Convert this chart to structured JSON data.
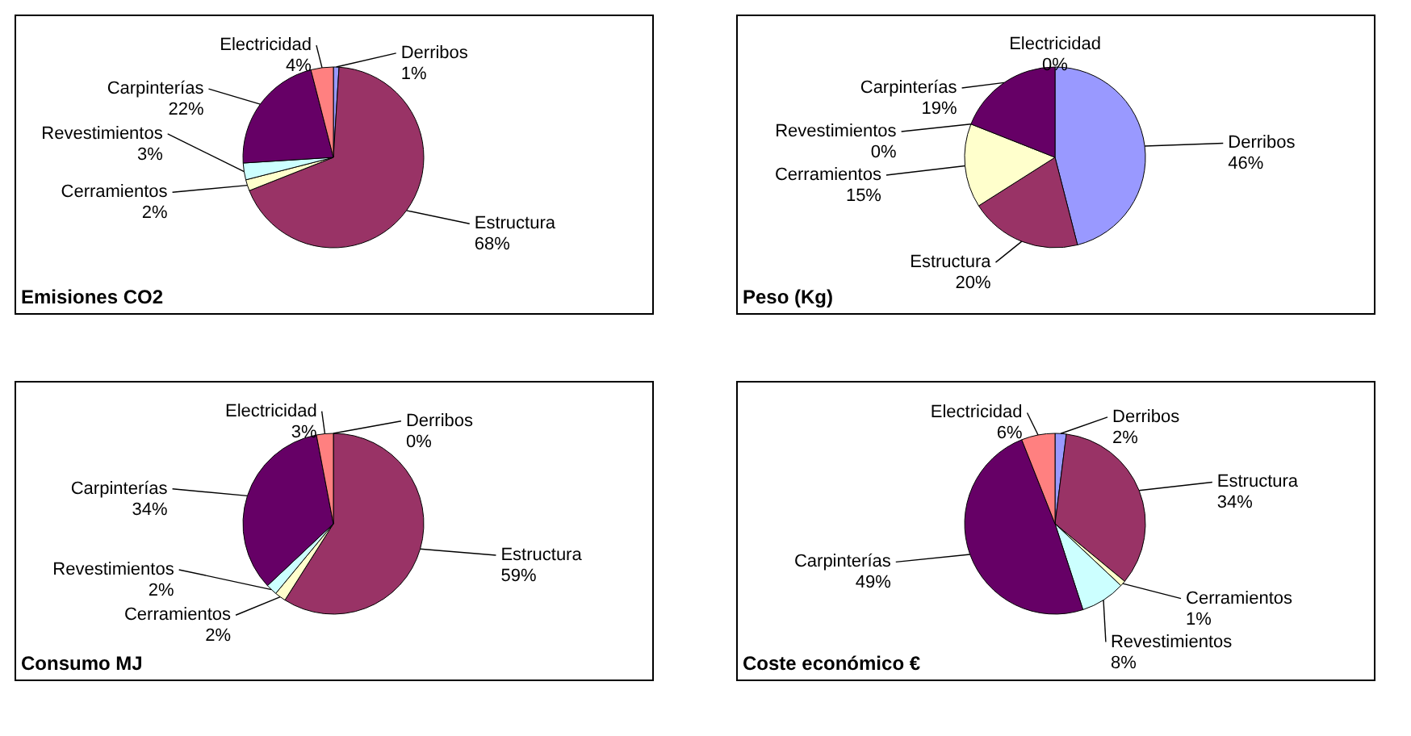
{
  "chart_data": [
    {
      "type": "pie",
      "title": "Emisiones CO2",
      "categories": [
        "Derribos",
        "Estructura",
        "Cerramientos",
        "Revestimientos",
        "Carpinterías",
        "Electricidad"
      ],
      "values": [
        1,
        68,
        2,
        3,
        22,
        4
      ],
      "value_labels": [
        "1%",
        "68%",
        "2%",
        "3%",
        "22%",
        "4%"
      ],
      "colors": [
        "#9999ff",
        "#993366",
        "#ffffcc",
        "#ccffff",
        "#660066",
        "#ff8080"
      ]
    },
    {
      "type": "pie",
      "title": "Peso (Kg)",
      "categories": [
        "Derribos",
        "Estructura",
        "Cerramientos",
        "Revestimientos",
        "Carpinterías",
        "Electricidad"
      ],
      "values": [
        46,
        20,
        15,
        0,
        19,
        0
      ],
      "value_labels": [
        "46%",
        "20%",
        "15%",
        "0%",
        "19%",
        "0%"
      ],
      "colors": [
        "#9999ff",
        "#993366",
        "#ffffcc",
        "#ccffff",
        "#660066",
        "#ff8080"
      ]
    },
    {
      "type": "pie",
      "title": "Consumo MJ",
      "categories": [
        "Derribos",
        "Estructura",
        "Cerramientos",
        "Revestimientos",
        "Carpinterías",
        "Electricidad"
      ],
      "values": [
        0,
        59,
        2,
        2,
        34,
        3
      ],
      "value_labels": [
        "0%",
        "59%",
        "2%",
        "2%",
        "34%",
        "3%"
      ],
      "colors": [
        "#9999ff",
        "#993366",
        "#ffffcc",
        "#ccffff",
        "#660066",
        "#ff8080"
      ]
    },
    {
      "type": "pie",
      "title": "Coste económico €",
      "categories": [
        "Derribos",
        "Estructura",
        "Cerramientos",
        "Revestimientos",
        "Carpinterías",
        "Electricidad"
      ],
      "values": [
        2,
        34,
        1,
        8,
        49,
        6
      ],
      "value_labels": [
        "2%",
        "34%",
        "1%",
        "8%",
        "49%",
        "6%"
      ],
      "colors": [
        "#9999ff",
        "#993366",
        "#ffffcc",
        "#ccffff",
        "#660066",
        "#ff8080"
      ]
    }
  ]
}
